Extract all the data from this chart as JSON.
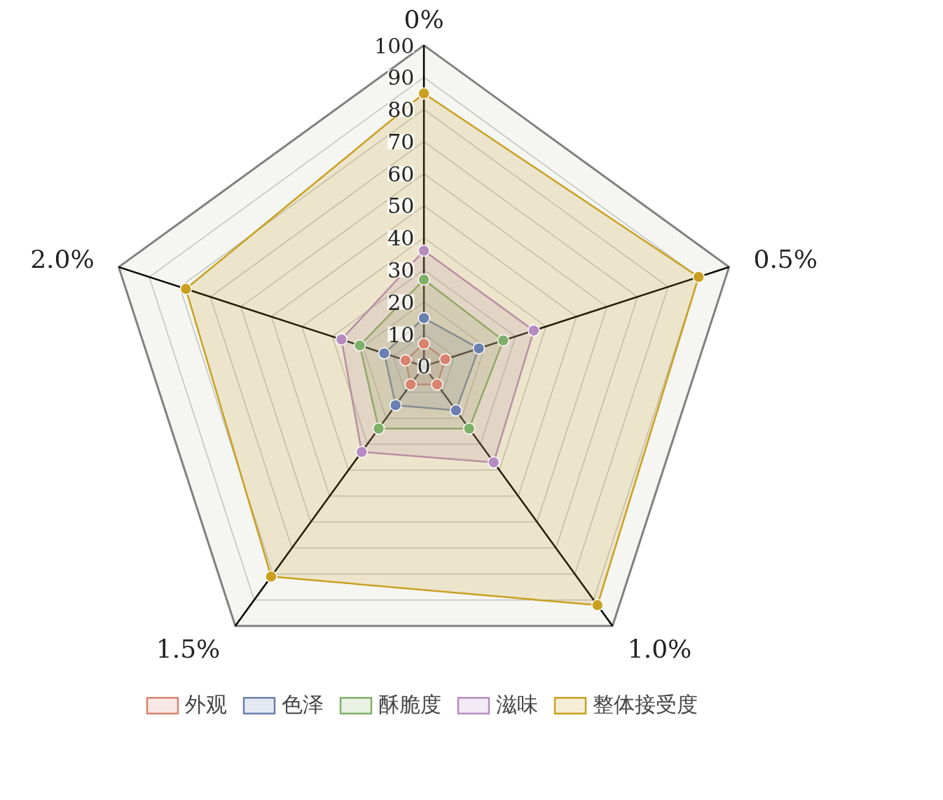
{
  "chart_data": {
    "type": "radar",
    "categories": [
      "0%",
      "0.5%",
      "1.0%",
      "1.5%",
      "2.0%"
    ],
    "series": [
      {
        "name": "外观",
        "color": "#d9826f",
        "values": [
          7,
          7,
          7,
          7,
          6
        ]
      },
      {
        "name": "色泽",
        "color": "#6b80b0",
        "values": [
          15,
          18,
          17,
          15,
          13
        ]
      },
      {
        "name": "酥脆度",
        "color": "#7fb069",
        "values": [
          27,
          26,
          24,
          24,
          21
        ]
      },
      {
        "name": "滋味",
        "color": "#b58bc0",
        "values": [
          36,
          36,
          37,
          33,
          27
        ]
      },
      {
        "name": "整体接受度",
        "color": "#c9a020",
        "values": [
          85,
          90,
          92,
          81,
          78
        ]
      }
    ],
    "ylim": [
      0,
      100
    ],
    "yticks": [
      0,
      10,
      20,
      30,
      40,
      50,
      60,
      70,
      80,
      90,
      100
    ],
    "grid": true,
    "marker": "circle",
    "legend": "bottom"
  }
}
